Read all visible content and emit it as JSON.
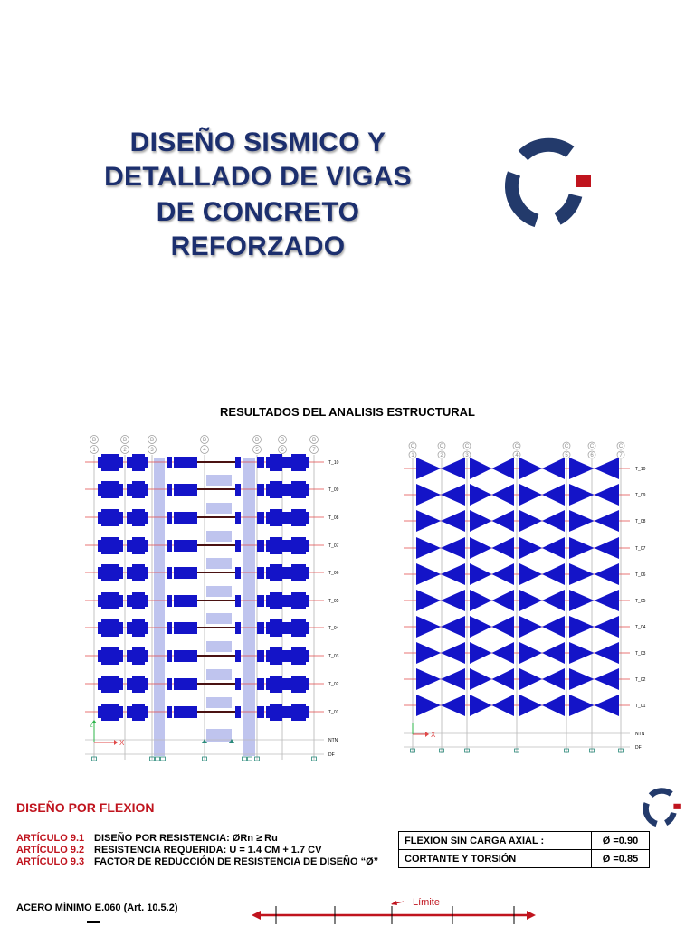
{
  "title": {
    "line1": "DISEÑO SISMICO Y",
    "line2": "DETALLADO DE VIGAS",
    "line3": "DE CONCRETO",
    "line4": "REFORZADO"
  },
  "logo": {
    "name": "logo-icon",
    "primary_color": "#233a6b",
    "accent_color": "#c0141e"
  },
  "analysis_heading": "RESULTADOS DEL ANALISIS ESTRUCTURAL",
  "moment_diagram": {
    "grid_labels": [
      "B",
      "B",
      "B",
      "B",
      "B",
      "B",
      "B"
    ],
    "grid_numbers": [
      "1",
      "2",
      "3",
      "4",
      "5",
      "6",
      "7"
    ],
    "levels": [
      "T_10",
      "T_09",
      "T_08",
      "T_07",
      "T_06",
      "T_05",
      "T_04",
      "T_03",
      "T_02",
      "T_01",
      "NTN",
      "DF"
    ],
    "axis_z": "Z",
    "axis_x": "X"
  },
  "shear_diagram": {
    "grid_labels": [
      "C",
      "C",
      "C",
      "C",
      "C",
      "C",
      "C"
    ],
    "grid_numbers": [
      "1",
      "2",
      "3",
      "4",
      "5",
      "6",
      "7"
    ],
    "levels": [
      "T_10",
      "T_09",
      "T_08",
      "T_07",
      "T_06",
      "T_05",
      "T_04",
      "T_03",
      "T_02",
      "T_01",
      "NTN",
      "DF"
    ],
    "axis_x": "X"
  },
  "flexion": {
    "heading": "DISEÑO POR FLEXION",
    "articles": [
      {
        "code": "ARTÍCULO 9.1",
        "text": "DISEÑO POR RESISTENCIA: ØRn ≥ Ru"
      },
      {
        "code": "ARTÍCULO 9.2",
        "text": "RESISTENCIA REQUERIDA: U = 1.4 CM + 1.7 CV"
      },
      {
        "code": "ARTÍCULO 9.3",
        "text": "FACTOR DE REDUCCIÓN DE RESISTENCIA DE DISEÑO “Ø”"
      }
    ],
    "factors": [
      {
        "label": "FLEXION SIN CARGA AXIAL :",
        "value": "Ø =0.90"
      },
      {
        "label": "CORTANTE Y TORSIÓN",
        "value": "Ø =0.85"
      }
    ]
  },
  "min_steel": {
    "heading": "ACERO MÍNIMO E.060 (Art. 10.5.2)",
    "limit_label": "Límite"
  }
}
